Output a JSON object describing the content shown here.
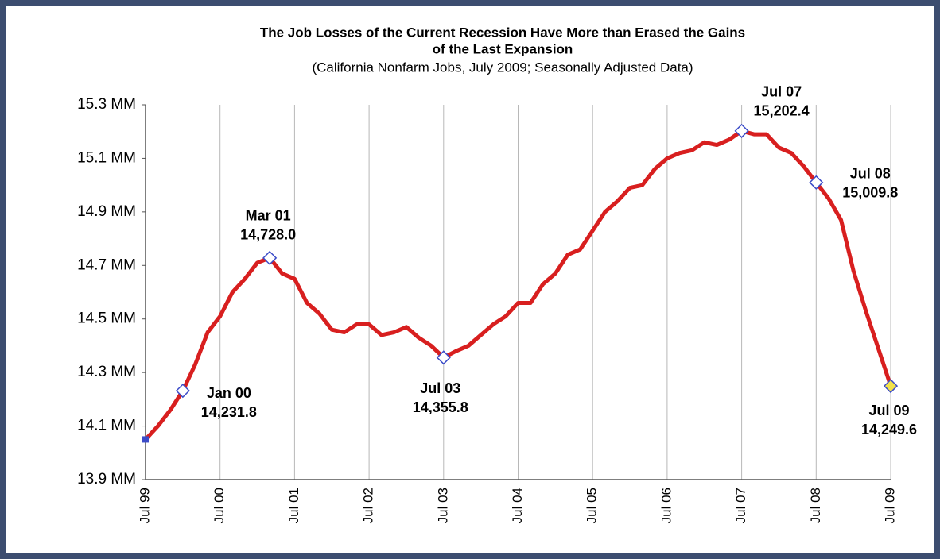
{
  "chart_data": {
    "type": "line",
    "title": [
      "The Job Losses of the Current Recession Have More than Erased the Gains",
      "of the Last Expansion"
    ],
    "subtitle": "(California Nonfarm Jobs, July 2009; Seasonally Adjusted Data)",
    "x": [
      "1999-07",
      "1999-09",
      "1999-11",
      "2000-01",
      "2000-03",
      "2000-05",
      "2000-07",
      "2000-09",
      "2000-11",
      "2001-01",
      "2001-03",
      "2001-05",
      "2001-07",
      "2001-09",
      "2001-11",
      "2002-01",
      "2002-03",
      "2002-05",
      "2002-07",
      "2002-09",
      "2002-11",
      "2003-01",
      "2003-03",
      "2003-05",
      "2003-07",
      "2003-09",
      "2003-11",
      "2004-01",
      "2004-03",
      "2004-05",
      "2004-07",
      "2004-09",
      "2004-11",
      "2005-01",
      "2005-03",
      "2005-05",
      "2005-07",
      "2005-09",
      "2005-11",
      "2006-01",
      "2006-03",
      "2006-05",
      "2006-07",
      "2006-09",
      "2006-11",
      "2007-01",
      "2007-03",
      "2007-05",
      "2007-07",
      "2007-09",
      "2007-11",
      "2008-01",
      "2008-03",
      "2008-05",
      "2008-07",
      "2008-09",
      "2008-11",
      "2009-01",
      "2009-03",
      "2009-05",
      "2009-07"
    ],
    "series": [
      {
        "color": "#d81f1f",
        "values": [
          14.05,
          14.1,
          14.16,
          14.2318,
          14.33,
          14.45,
          14.51,
          14.6,
          14.65,
          14.71,
          14.728,
          14.67,
          14.65,
          14.56,
          14.52,
          14.46,
          14.45,
          14.48,
          14.48,
          14.44,
          14.45,
          14.47,
          14.43,
          14.4,
          14.3558,
          14.38,
          14.4,
          14.44,
          14.48,
          14.51,
          14.56,
          14.56,
          14.63,
          14.67,
          14.74,
          14.76,
          14.83,
          14.9,
          14.94,
          14.99,
          15.0,
          15.06,
          15.1,
          15.12,
          15.13,
          15.16,
          15.15,
          15.17,
          15.2024,
          15.19,
          15.19,
          15.14,
          15.12,
          15.07,
          15.0098,
          14.95,
          14.87,
          14.68,
          14.53,
          14.39,
          14.2496
        ],
        "point_labels": [
          null,
          null,
          null,
          "Jan 00",
          null,
          null,
          null,
          null,
          null,
          null,
          "Mar 01",
          null,
          null,
          null,
          null,
          null,
          null,
          null,
          null,
          null,
          null,
          null,
          null,
          null,
          "Jul 03",
          null,
          null,
          null,
          null,
          null,
          null,
          null,
          null,
          null,
          null,
          null,
          null,
          null,
          null,
          null,
          null,
          null,
          null,
          null,
          null,
          null,
          null,
          null,
          "Jul 07",
          null,
          null,
          null,
          null,
          null,
          "Jul 08",
          null,
          null,
          null,
          null,
          null,
          "Jul 09"
        ],
        "value_labels": [
          null,
          null,
          null,
          "14,231.8",
          null,
          null,
          null,
          null,
          null,
          null,
          "14,728.0",
          null,
          null,
          null,
          null,
          null,
          null,
          null,
          null,
          null,
          null,
          null,
          null,
          null,
          "14,355.8",
          null,
          null,
          null,
          null,
          null,
          null,
          null,
          null,
          null,
          null,
          null,
          null,
          null,
          null,
          null,
          null,
          null,
          null,
          null,
          null,
          null,
          null,
          null,
          "15,202.4",
          null,
          null,
          null,
          null,
          null,
          "15,009.8",
          null,
          null,
          null,
          null,
          null,
          "14,249.6"
        ]
      }
    ],
    "marker_color": "#3b4bc8",
    "highlight_color": "#f2e24a",
    "xlim": [
      "1999-07",
      "2009-07"
    ],
    "xticks": [
      {
        "value": "1999-07",
        "label": "Jul 99"
      },
      {
        "value": "2000-07",
        "label": "Jul 00"
      },
      {
        "value": "2001-07",
        "label": "Jul 01"
      },
      {
        "value": "2002-07",
        "label": "Jul 02"
      },
      {
        "value": "2003-07",
        "label": "Jul 03"
      },
      {
        "value": "2004-07",
        "label": "Jul 04"
      },
      {
        "value": "2005-07",
        "label": "Jul 05"
      },
      {
        "value": "2006-07",
        "label": "Jul 06"
      },
      {
        "value": "2007-07",
        "label": "Jul 07"
      },
      {
        "value": "2008-07",
        "label": "Jul 08"
      },
      {
        "value": "2009-07",
        "label": "Jul 09"
      }
    ],
    "ylim": [
      13.9,
      15.3
    ],
    "yticks": [
      {
        "value": 13.9,
        "label": "13.9 MM"
      },
      {
        "value": 14.1,
        "label": "14.1 MM"
      },
      {
        "value": 14.3,
        "label": "14.3 MM"
      },
      {
        "value": 14.5,
        "label": "14.5 MM"
      },
      {
        "value": 14.7,
        "label": "14.7 MM"
      },
      {
        "value": 14.9,
        "label": "14.9 MM"
      },
      {
        "value": 15.1,
        "label": "15.1 MM"
      },
      {
        "value": 15.3,
        "label": "15.3 MM"
      }
    ],
    "grid": "x"
  }
}
